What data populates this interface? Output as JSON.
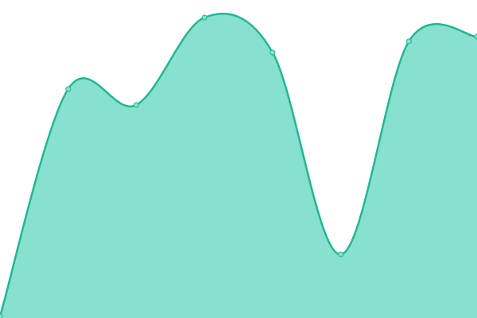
{
  "chart_data": {
    "type": "area",
    "categories": [
      null,
      null,
      null,
      null,
      null,
      null,
      null,
      null
    ],
    "values": [
      0.5,
      72,
      67,
      94.5,
      83.5,
      20,
      87,
      88.5
    ],
    "ylim": [
      0,
      100
    ],
    "color": "#1fb894",
    "fill": "#88e0cf"
  }
}
